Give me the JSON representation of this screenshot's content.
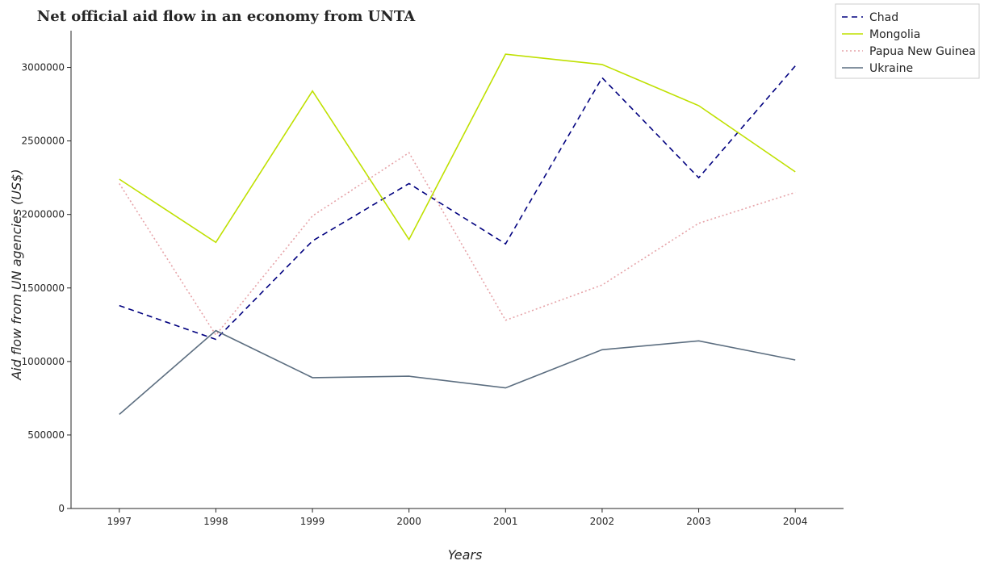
{
  "chart_data": {
    "type": "line",
    "title": "Net official aid flow in an economy from UNTA",
    "xlabel": "Years",
    "ylabel": "Aid flow from UN agencies (US$)",
    "x": [
      "1997",
      "1998",
      "1999",
      "2000",
      "2001",
      "2002",
      "2003",
      "2004"
    ],
    "ylim": [
      0,
      3250000
    ],
    "yticks": [
      0,
      500000,
      1000000,
      1500000,
      2000000,
      2500000,
      3000000
    ],
    "ytick_labels": [
      "0",
      "500000",
      "1000000",
      "1500000",
      "2000000",
      "2500000",
      "3000000"
    ],
    "legend_position": "top-right",
    "grid": false,
    "series": [
      {
        "name": "Chad",
        "color": "#00007f",
        "dash": "dashed",
        "values": [
          1380000,
          1150000,
          1820000,
          2210000,
          1800000,
          2930000,
          2250000,
          3010000
        ]
      },
      {
        "name": "Mongolia",
        "color": "#bfe000",
        "dash": "solid",
        "values": [
          2240000,
          1810000,
          2840000,
          1830000,
          3090000,
          3020000,
          2740000,
          2290000
        ]
      },
      {
        "name": "Papua New Guinea",
        "color": "#e6a3a8",
        "dash": "dotted",
        "values": [
          2210000,
          1180000,
          1990000,
          2420000,
          1280000,
          1520000,
          1940000,
          2150000
        ]
      },
      {
        "name": "Ukraine",
        "color": "#5c6e80",
        "dash": "solid",
        "values": [
          640000,
          1210000,
          890000,
          900000,
          820000,
          1080000,
          1140000,
          1010000
        ]
      }
    ]
  }
}
